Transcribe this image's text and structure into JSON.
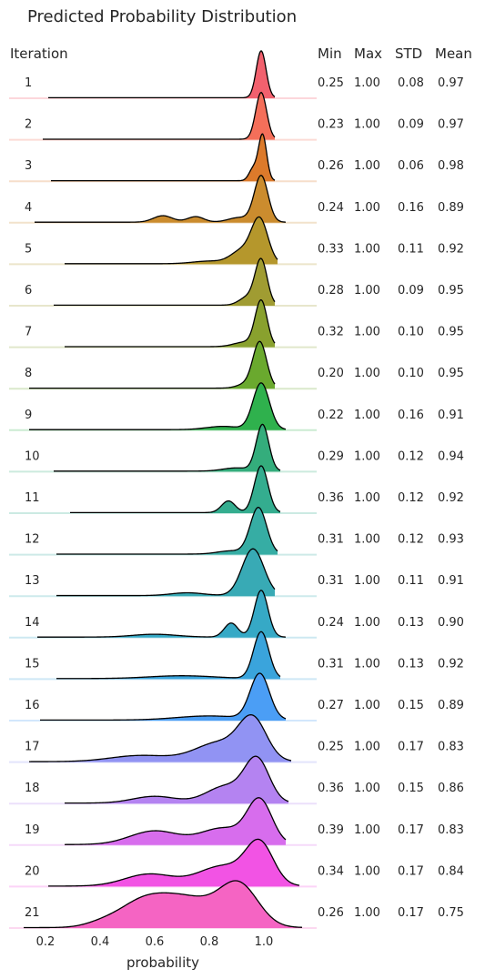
{
  "chart_data": {
    "type": "ridgeline",
    "title": "Predicted Probability Distribution",
    "xlabel": "probability",
    "xlim": [
      0.1,
      1.15
    ],
    "xticks": [
      "0.2",
      "0.4",
      "0.6",
      "0.8",
      "1.0"
    ],
    "xtick_values": [
      0.2,
      0.4,
      0.6,
      0.8,
      1.0
    ],
    "grid": false,
    "columns": {
      "iteration": "Iteration",
      "min": "Min",
      "max": "Max",
      "std": "STD",
      "mean": "Mean"
    },
    "rows": [
      {
        "iteration": "1",
        "min": "0.25",
        "max": "1.00",
        "std": "0.08",
        "mean": "0.97",
        "color": "#f2616e",
        "start": 0.21,
        "end": 1.04,
        "peak": 0.99,
        "peak_width": 0.018,
        "bumps": []
      },
      {
        "iteration": "2",
        "min": "0.23",
        "max": "1.00",
        "std": "0.09",
        "mean": "0.97",
        "color": "#f46f5a",
        "start": 0.19,
        "end": 1.04,
        "peak": 0.99,
        "peak_width": 0.02,
        "bumps": []
      },
      {
        "iteration": "3",
        "min": "0.26",
        "max": "1.00",
        "std": "0.06",
        "mean": "0.98",
        "color": "#dc7a2b",
        "start": 0.22,
        "end": 1.04,
        "peak": 0.995,
        "peak_width": 0.015,
        "bumps": [
          [
            0.96,
            0.25,
            0.015
          ]
        ]
      },
      {
        "iteration": "4",
        "min": "0.24",
        "max": "1.00",
        "std": "0.16",
        "mean": "0.89",
        "color": "#cb8c2e",
        "start": 0.16,
        "end": 1.08,
        "peak": 0.99,
        "peak_width": 0.025,
        "bumps": [
          [
            0.63,
            0.14,
            0.035
          ],
          [
            0.75,
            0.12,
            0.03
          ],
          [
            0.91,
            0.1,
            0.04
          ]
        ]
      },
      {
        "iteration": "5",
        "min": "0.33",
        "max": "1.00",
        "std": "0.11",
        "mean": "0.92",
        "color": "#b5972c",
        "start": 0.27,
        "end": 1.05,
        "peak": 0.985,
        "peak_width": 0.03,
        "bumps": [
          [
            0.92,
            0.3,
            0.04
          ],
          [
            0.8,
            0.06,
            0.06
          ]
        ]
      },
      {
        "iteration": "6",
        "min": "0.28",
        "max": "1.00",
        "std": "0.09",
        "mean": "0.95",
        "color": "#a09c32",
        "start": 0.23,
        "end": 1.04,
        "peak": 0.99,
        "peak_width": 0.022,
        "bumps": [
          [
            0.94,
            0.18,
            0.03
          ]
        ]
      },
      {
        "iteration": "7",
        "min": "0.32",
        "max": "1.00",
        "std": "0.10",
        "mean": "0.95",
        "color": "#89a12e",
        "start": 0.27,
        "end": 1.04,
        "peak": 0.99,
        "peak_width": 0.022,
        "bumps": [
          [
            0.93,
            0.1,
            0.04
          ]
        ]
      },
      {
        "iteration": "8",
        "min": "0.20",
        "max": "1.00",
        "std": "0.10",
        "mean": "0.95",
        "color": "#6aa92e",
        "start": 0.14,
        "end": 1.04,
        "peak": 0.985,
        "peak_width": 0.025,
        "bumps": [
          [
            0.93,
            0.08,
            0.03
          ]
        ]
      },
      {
        "iteration": "9",
        "min": "0.22",
        "max": "1.00",
        "std": "0.16",
        "mean": "0.91",
        "color": "#2fb14d",
        "start": 0.14,
        "end": 1.08,
        "peak": 0.99,
        "peak_width": 0.03,
        "bumps": [
          [
            0.85,
            0.07,
            0.06
          ]
        ]
      },
      {
        "iteration": "10",
        "min": "0.29",
        "max": "1.00",
        "std": "0.12",
        "mean": "0.94",
        "color": "#34ad7c",
        "start": 0.23,
        "end": 1.06,
        "peak": 0.995,
        "peak_width": 0.023,
        "bumps": [
          [
            0.9,
            0.07,
            0.05
          ]
        ]
      },
      {
        "iteration": "11",
        "min": "0.36",
        "max": "1.00",
        "std": "0.12",
        "mean": "0.92",
        "color": "#34ad8f",
        "start": 0.29,
        "end": 1.06,
        "peak": 0.99,
        "peak_width": 0.025,
        "bumps": [
          [
            0.87,
            0.25,
            0.025
          ]
        ]
      },
      {
        "iteration": "12",
        "min": "0.31",
        "max": "1.00",
        "std": "0.12",
        "mean": "0.93",
        "color": "#36ada4",
        "start": 0.24,
        "end": 1.05,
        "peak": 0.98,
        "peak_width": 0.03,
        "bumps": [
          [
            0.88,
            0.07,
            0.05
          ]
        ]
      },
      {
        "iteration": "13",
        "min": "0.31",
        "max": "1.00",
        "std": "0.11",
        "mean": "0.91",
        "color": "#38aab5",
        "start": 0.24,
        "end": 1.04,
        "peak": 0.96,
        "peak_width": 0.04,
        "bumps": [
          [
            0.72,
            0.06,
            0.06
          ]
        ]
      },
      {
        "iteration": "14",
        "min": "0.24",
        "max": "1.00",
        "std": "0.13",
        "mean": "0.90",
        "color": "#36a9c6",
        "start": 0.17,
        "end": 1.08,
        "peak": 0.99,
        "peak_width": 0.025,
        "bumps": [
          [
            0.88,
            0.3,
            0.025
          ],
          [
            0.6,
            0.06,
            0.08
          ]
        ]
      },
      {
        "iteration": "15",
        "min": "0.31",
        "max": "1.00",
        "std": "0.13",
        "mean": "0.92",
        "color": "#3aa4dc",
        "start": 0.24,
        "end": 1.06,
        "peak": 0.99,
        "peak_width": 0.028,
        "bumps": [
          [
            0.7,
            0.06,
            0.12
          ]
        ]
      },
      {
        "iteration": "16",
        "min": "0.27",
        "max": "1.00",
        "std": "0.15",
        "mean": "0.89",
        "color": "#4b9ef5",
        "start": 0.18,
        "end": 1.08,
        "peak": 0.985,
        "peak_width": 0.035,
        "bumps": [
          [
            0.8,
            0.09,
            0.12
          ]
        ]
      },
      {
        "iteration": "17",
        "min": "0.25",
        "max": "1.00",
        "std": "0.17",
        "mean": "0.83",
        "color": "#9193f3",
        "start": 0.14,
        "end": 1.1,
        "peak": 0.96,
        "peak_width": 0.05,
        "bumps": [
          [
            0.84,
            0.5,
            0.09
          ],
          [
            0.55,
            0.16,
            0.11
          ]
        ]
      },
      {
        "iteration": "18",
        "min": "0.36",
        "max": "1.00",
        "std": "0.15",
        "mean": "0.86",
        "color": "#b483f1",
        "start": 0.27,
        "end": 1.09,
        "peak": 0.975,
        "peak_width": 0.045,
        "bumps": [
          [
            0.86,
            0.4,
            0.07
          ],
          [
            0.6,
            0.16,
            0.08
          ]
        ]
      },
      {
        "iteration": "19",
        "min": "0.39",
        "max": "1.00",
        "std": "0.17",
        "mean": "0.83",
        "color": "#d76ded",
        "start": 0.27,
        "end": 1.08,
        "peak": 0.985,
        "peak_width": 0.045,
        "bumps": [
          [
            0.85,
            0.38,
            0.08
          ],
          [
            0.6,
            0.32,
            0.09
          ]
        ]
      },
      {
        "iteration": "20",
        "min": "0.34",
        "max": "1.00",
        "std": "0.17",
        "mean": "0.84",
        "color": "#f253e4",
        "start": 0.21,
        "end": 1.13,
        "peak": 0.985,
        "peak_width": 0.05,
        "bumps": [
          [
            0.85,
            0.5,
            0.09
          ],
          [
            0.58,
            0.3,
            0.09
          ]
        ]
      },
      {
        "iteration": "21",
        "min": "0.26",
        "max": "1.00",
        "std": "0.17",
        "mean": "0.75",
        "color": "#f564c3",
        "start": 0.12,
        "end": 1.14,
        "peak": 0.91,
        "peak_width": 0.07,
        "bumps": [
          [
            0.72,
            0.7,
            0.11
          ],
          [
            0.55,
            0.55,
            0.09
          ],
          [
            0.4,
            0.08,
            0.06
          ]
        ]
      }
    ]
  }
}
